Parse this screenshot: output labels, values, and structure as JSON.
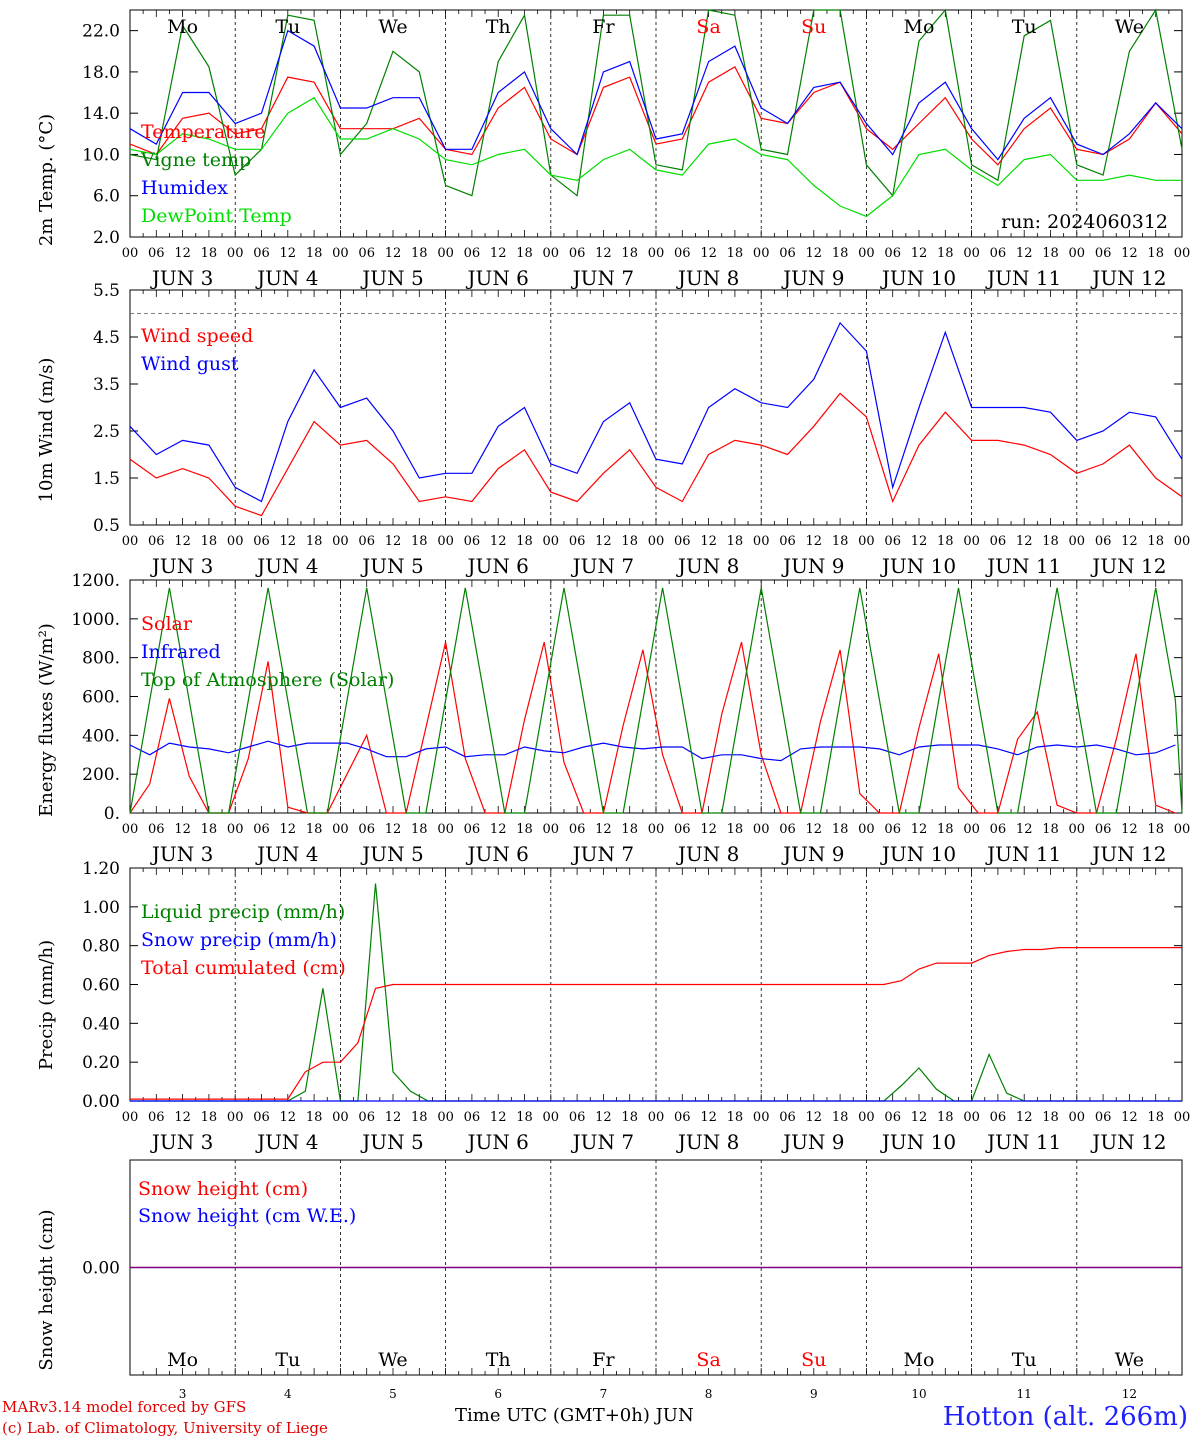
{
  "station": "Hotton (alt. 266m)",
  "run": "run: 2024060312",
  "credit_line1": "MARv3.14 model forced by GFS",
  "credit_line2": "(c) Lab. of Climatology, University of Liege",
  "x_title": "Time UTC (GMT+0h) JUN",
  "colors": {
    "red": "#ff0000",
    "blue": "#0000ff",
    "green": "#008000",
    "lime": "#00dd00",
    "purple": "#800080",
    "weekend": "#ff0000"
  },
  "days": [
    {
      "dow": "Mo",
      "date": "JUN  3",
      "num": "3",
      "weekend": false
    },
    {
      "dow": "Tu",
      "date": "JUN  4",
      "num": "4",
      "weekend": false
    },
    {
      "dow": "We",
      "date": "JUN  5",
      "num": "5",
      "weekend": false
    },
    {
      "dow": "Th",
      "date": "JUN  6",
      "num": "6",
      "weekend": false
    },
    {
      "dow": "Fr",
      "date": "JUN  7",
      "num": "7",
      "weekend": false
    },
    {
      "dow": "Sa",
      "date": "JUN  8",
      "num": "8",
      "weekend": true
    },
    {
      "dow": "Su",
      "date": "JUN  9",
      "num": "9",
      "weekend": true
    },
    {
      "dow": "Mo",
      "date": "JUN 10",
      "num": "10",
      "weekend": false
    },
    {
      "dow": "Tu",
      "date": "JUN 11",
      "num": "11",
      "weekend": false
    },
    {
      "dow": "We",
      "date": "JUN 12",
      "num": "12",
      "weekend": false
    }
  ],
  "hour_ticks": [
    "00",
    "06",
    "12",
    "18"
  ],
  "chart_data": [
    {
      "id": "temp",
      "type": "line",
      "ylabel": "2m Temp. (°C)",
      "ylim": [
        2,
        24
      ],
      "yticks": [
        "2.0",
        "6.0",
        "10.0",
        "14.0",
        "18.0",
        "22.0"
      ],
      "yvals": [
        2,
        6,
        10,
        14,
        18,
        22
      ],
      "x_unit": "hours since JUN 3 00 UTC",
      "x_step": 6,
      "series": [
        {
          "name": "Temperature",
          "color": "red",
          "values": [
            11.0,
            10.0,
            13.5,
            14.0,
            12.0,
            12.5,
            17.5,
            17.0,
            12.5,
            12.5,
            12.5,
            13.5,
            10.5,
            10.0,
            14.5,
            16.5,
            11.5,
            10.0,
            16.5,
            17.5,
            11.0,
            11.5,
            17.0,
            18.5,
            13.5,
            13.0,
            16.0,
            17.0,
            12.5,
            10.5,
            13.0,
            15.5,
            11.5,
            9.0,
            12.5,
            14.5,
            10.5,
            10.0,
            11.5,
            15.0,
            12.0
          ]
        },
        {
          "name": "Vigne temp",
          "color": "green",
          "values": [
            10.0,
            9.5,
            22.5,
            18.5,
            8.0,
            10.5,
            23.5,
            23.0,
            10.0,
            13.0,
            20.0,
            18.0,
            7.0,
            6.0,
            19.0,
            23.5,
            8.0,
            6.0,
            23.5,
            23.5,
            9.0,
            8.5,
            24.0,
            23.5,
            10.5,
            10.0,
            24.0,
            24.0,
            9.0,
            6.0,
            21.0,
            24.0,
            9.0,
            7.5,
            21.5,
            23.0,
            9.0,
            8.0,
            20.0,
            24.0,
            10.5
          ]
        },
        {
          "name": "Humidex",
          "color": "blue",
          "values": [
            12.5,
            11.0,
            16.0,
            16.0,
            13.0,
            14.0,
            22.0,
            20.5,
            14.5,
            14.5,
            15.5,
            15.5,
            10.5,
            10.5,
            16.0,
            18.0,
            12.5,
            10.0,
            18.0,
            19.0,
            11.5,
            12.0,
            19.0,
            20.5,
            14.5,
            13.0,
            16.5,
            17.0,
            13.0,
            10.0,
            15.0,
            17.0,
            12.5,
            9.5,
            13.5,
            15.5,
            11.0,
            10.0,
            12.0,
            15.0,
            12.5
          ]
        },
        {
          "name": "DewPoint Temp",
          "color": "lime",
          "values": [
            10.5,
            10.0,
            12.0,
            11.5,
            10.5,
            10.5,
            14.0,
            15.5,
            11.5,
            11.5,
            12.5,
            11.5,
            9.5,
            9.0,
            10.0,
            10.5,
            8.0,
            7.5,
            9.5,
            10.5,
            8.5,
            8.0,
            11.0,
            11.5,
            10.0,
            9.5,
            7.0,
            5.0,
            4.0,
            6.0,
            10.0,
            10.5,
            8.5,
            7.0,
            9.5,
            10.0,
            7.5,
            7.5,
            8.0,
            7.5,
            7.5
          ]
        }
      ]
    },
    {
      "id": "wind",
      "type": "line",
      "ylabel": "10m Wind (m/s)",
      "ylim": [
        0.5,
        5.5
      ],
      "yticks": [
        "0.5",
        "1.5",
        "2.5",
        "3.5",
        "4.5",
        "5.5"
      ],
      "yvals": [
        0.5,
        1.5,
        2.5,
        3.5,
        4.5,
        5.5
      ],
      "x_unit": "hours since JUN 3 00 UTC",
      "x_step": 6,
      "series": [
        {
          "name": "Wind speed",
          "color": "red",
          "values": [
            1.9,
            1.5,
            1.7,
            1.5,
            0.9,
            0.7,
            1.7,
            2.7,
            2.2,
            2.3,
            1.8,
            1.0,
            1.1,
            1.0,
            1.7,
            2.1,
            1.2,
            1.0,
            1.6,
            2.1,
            1.3,
            1.0,
            2.0,
            2.3,
            2.2,
            2.0,
            2.6,
            3.3,
            2.8,
            1.0,
            2.2,
            2.9,
            2.3,
            2.3,
            2.2,
            2.0,
            1.6,
            1.8,
            2.2,
            1.5,
            1.1
          ]
        },
        {
          "name": "Wind gust",
          "color": "blue",
          "values": [
            2.6,
            2.0,
            2.3,
            2.2,
            1.3,
            1.0,
            2.7,
            3.8,
            3.0,
            3.2,
            2.5,
            1.5,
            1.6,
            1.6,
            2.6,
            3.0,
            1.8,
            1.6,
            2.7,
            3.1,
            1.9,
            1.8,
            3.0,
            3.4,
            3.1,
            3.0,
            3.6,
            4.8,
            4.2,
            1.3,
            3.0,
            4.6,
            3.0,
            3.0,
            3.0,
            2.9,
            2.3,
            2.5,
            2.9,
            2.8,
            1.9
          ]
        }
      ]
    },
    {
      "id": "energy",
      "type": "line",
      "ylabel": "Energy fluxes (W/m²)",
      "ylim": [
        0,
        1200
      ],
      "yticks": [
        "0.",
        "200.",
        "400.",
        "600.",
        "800.",
        "1000.",
        "1200."
      ],
      "yvals": [
        0,
        200,
        400,
        600,
        800,
        1000,
        1200
      ],
      "x_unit": "hours since JUN 3 00 UTC",
      "x_step": 6,
      "series": [
        {
          "name": "Solar",
          "color": "red",
          "values": [
            0,
            150,
            590,
            190,
            0,
            0,
            280,
            780,
            30,
            0,
            0,
            200,
            400,
            0,
            0,
            440,
            880,
            280,
            0,
            0,
            480,
            880,
            260,
            0,
            0,
            450,
            840,
            300,
            0,
            0,
            510,
            880,
            300,
            0,
            0,
            470,
            840,
            100,
            0,
            0,
            440,
            820,
            130,
            0,
            0,
            380,
            520,
            40,
            0,
            0,
            380,
            820,
            40,
            0
          ]
        },
        {
          "name": "Infrared",
          "color": "blue",
          "values": [
            350,
            300,
            360,
            340,
            330,
            310,
            340,
            370,
            340,
            360,
            360,
            360,
            330,
            290,
            290,
            330,
            340,
            290,
            300,
            300,
            340,
            320,
            310,
            340,
            360,
            340,
            330,
            340,
            340,
            280,
            300,
            300,
            280,
            270,
            330,
            340,
            340,
            340,
            330,
            300,
            340,
            350,
            350,
            350,
            330,
            300,
            340,
            350,
            340,
            350,
            330,
            300,
            310,
            350
          ]
        },
        {
          "name": "Top of Atmosphere (Solar)",
          "color": "green",
          "values": [
            0,
            580,
            1160,
            580,
            0,
            0,
            580,
            1160,
            580,
            0,
            0,
            580,
            1160,
            580,
            0,
            0,
            580,
            1160,
            580,
            0,
            0,
            580,
            1160,
            580,
            0,
            0,
            580,
            1160,
            580,
            0,
            0,
            580,
            1160,
            580,
            0,
            0,
            580,
            1160,
            580,
            0,
            0,
            580,
            1160,
            580,
            0,
            0,
            580,
            1160,
            580,
            0,
            0,
            580,
            1160,
            580,
            0
          ]
        }
      ]
    },
    {
      "id": "precip",
      "type": "line",
      "ylabel": "Precip (mm/h)",
      "ylim": [
        0,
        1.2
      ],
      "yticks": [
        "0.00",
        "0.20",
        "0.40",
        "0.60",
        "0.80",
        "1.00",
        "1.20"
      ],
      "yvals": [
        0,
        0.2,
        0.4,
        0.6,
        0.8,
        1.0,
        1.2
      ],
      "x_unit": "hours since JUN 3 00 UTC",
      "x_step": 6,
      "series": [
        {
          "name": "Liquid precip (mm/h)",
          "color": "green",
          "values": [
            0,
            0,
            0,
            0,
            0,
            0,
            0,
            0,
            0,
            0,
            0.05,
            0.58,
            0,
            0,
            1.12,
            0.15,
            0.05,
            0,
            0,
            0,
            0,
            0,
            0,
            0,
            0,
            0,
            0,
            0,
            0,
            0,
            0,
            0,
            0,
            0,
            0,
            0,
            0,
            0,
            0,
            0,
            0,
            0,
            0,
            0,
            0.08,
            0.17,
            0.06,
            0,
            0,
            0.24,
            0.04,
            0,
            0,
            0,
            0,
            0,
            0,
            0,
            0,
            0,
            0
          ]
        },
        {
          "name": "Snow precip (mm/h)",
          "color": "blue",
          "values": [
            0,
            0,
            0,
            0,
            0,
            0,
            0,
            0,
            0,
            0,
            0,
            0,
            0,
            0,
            0,
            0,
            0,
            0,
            0,
            0,
            0,
            0,
            0,
            0,
            0,
            0,
            0,
            0,
            0,
            0,
            0,
            0,
            0,
            0,
            0,
            0,
            0,
            0,
            0,
            0,
            0,
            0,
            0,
            0,
            0,
            0,
            0,
            0,
            0,
            0,
            0,
            0,
            0,
            0,
            0,
            0,
            0,
            0,
            0,
            0,
            0
          ]
        },
        {
          "name": "Total cumulated (cm)",
          "color": "red",
          "values": [
            0.01,
            0.01,
            0.01,
            0.01,
            0.01,
            0.01,
            0.01,
            0.01,
            0.01,
            0.01,
            0.15,
            0.2,
            0.2,
            0.3,
            0.58,
            0.6,
            0.6,
            0.6,
            0.6,
            0.6,
            0.6,
            0.6,
            0.6,
            0.6,
            0.6,
            0.6,
            0.6,
            0.6,
            0.6,
            0.6,
            0.6,
            0.6,
            0.6,
            0.6,
            0.6,
            0.6,
            0.6,
            0.6,
            0.6,
            0.6,
            0.6,
            0.6,
            0.6,
            0.6,
            0.62,
            0.68,
            0.71,
            0.71,
            0.71,
            0.75,
            0.77,
            0.78,
            0.78,
            0.79,
            0.79,
            0.79,
            0.79,
            0.79,
            0.79,
            0.79,
            0.79
          ]
        }
      ]
    },
    {
      "id": "snow",
      "type": "line",
      "ylabel": "Snow height (cm)",
      "ylim": [
        -1,
        1
      ],
      "yticks": [
        "0.00"
      ],
      "yvals": [
        0
      ],
      "x_unit": "hours since JUN 3 00 UTC",
      "x_step": 6,
      "series": [
        {
          "name": "Snow height (cm)",
          "color": "red",
          "values": [
            0,
            0
          ]
        },
        {
          "name": "Snow height (cm W.E.)",
          "color": "blue",
          "values": [
            0,
            0
          ]
        }
      ]
    }
  ]
}
